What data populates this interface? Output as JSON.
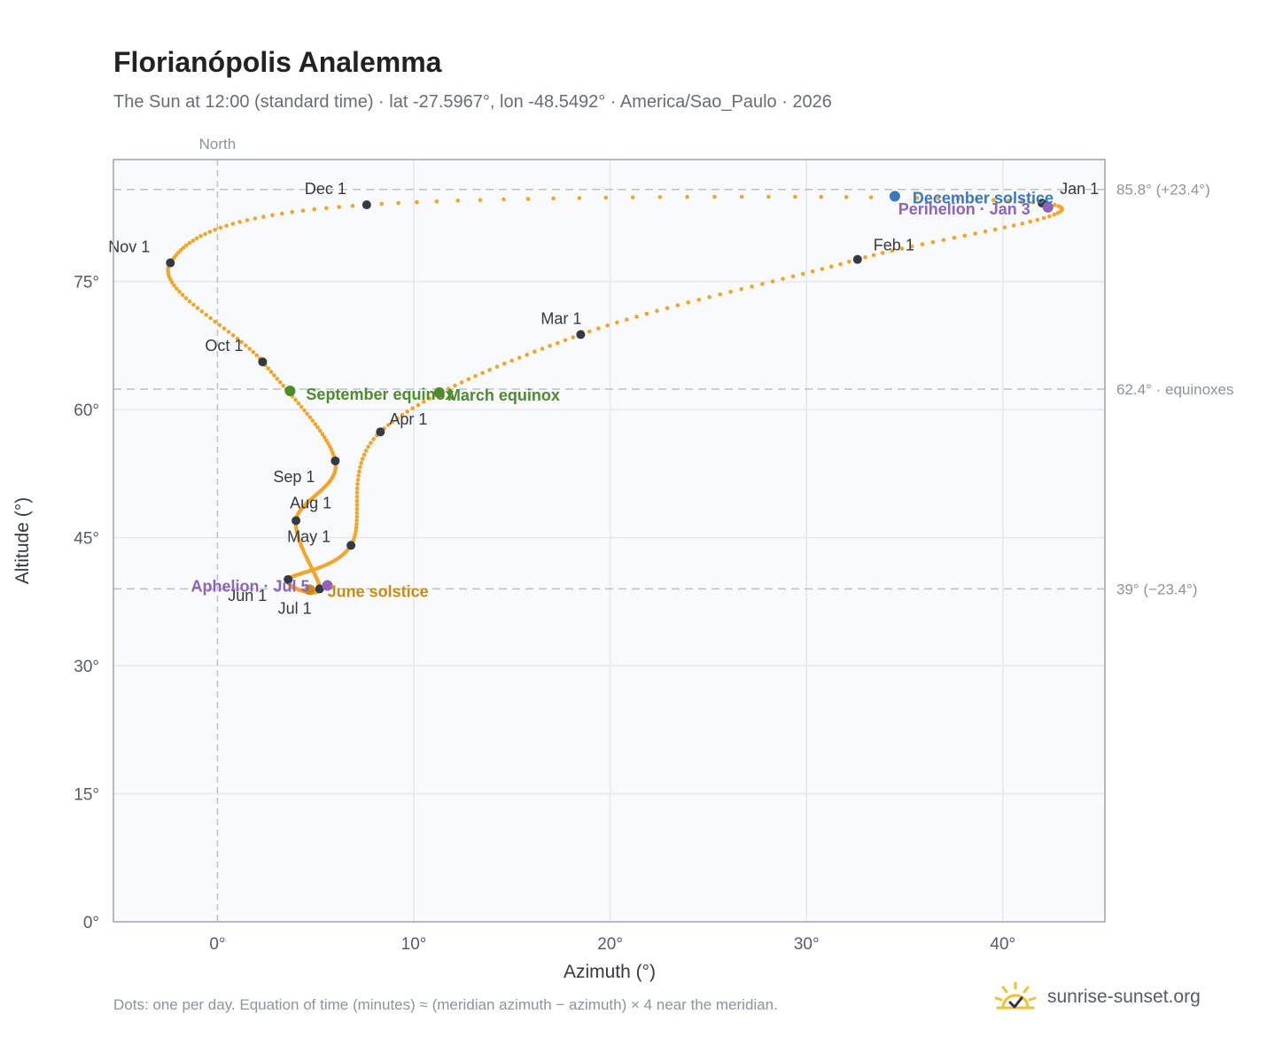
{
  "header": {
    "title": "Florianópolis Analemma",
    "subtitle": "The Sun at 12:00 (standard time) · lat -27.5967°, lon -48.5492° · America/Sao_Paulo · 2026"
  },
  "footer": {
    "note": "Dots: one per day. Equation of time (minutes) ≈ (meridian azimuth − azimuth) × 4 near the meridian.",
    "brand": "sunrise-sunset.org",
    "brand_icon": "sun-logo-icon"
  },
  "colors": {
    "curve": "#f2a52a",
    "month_dot": "#333a44",
    "equinox": "#4e8a2e",
    "december_solstice": "#3a78c0",
    "june_solstice": "#c98c14",
    "apsis": "#8f63b8",
    "plot_bg": "#f8fafc",
    "grid": "#e3e8ee",
    "reference_line": "#b8c1cc"
  },
  "chart_data": {
    "type": "scatter",
    "title": "Florianópolis Analemma",
    "xlabel": "Azimuth (°)",
    "ylabel": "Altitude (°)",
    "xlim": [
      -5.3,
      45.2
    ],
    "ylim": [
      0,
      89.3
    ],
    "x_ticks": [
      {
        "value": 0,
        "label": "0°"
      },
      {
        "value": 10,
        "label": "10°"
      },
      {
        "value": 20,
        "label": "20°"
      },
      {
        "value": 30,
        "label": "30°"
      },
      {
        "value": 40,
        "label": "40°"
      }
    ],
    "y_ticks": [
      {
        "value": 0,
        "label": "0°"
      },
      {
        "value": 15,
        "label": "15°"
      },
      {
        "value": 30,
        "label": "30°"
      },
      {
        "value": 45,
        "label": "45°"
      },
      {
        "value": 60,
        "label": "60°"
      },
      {
        "value": 75,
        "label": "75°"
      }
    ],
    "grid": true,
    "meridian": {
      "azimuth": 0,
      "label": "North"
    },
    "reference_lines": [
      {
        "altitude": 85.8,
        "label": "85.8° (+23.4°)"
      },
      {
        "altitude": 62.4,
        "label": "62.4° · equinoxes"
      },
      {
        "altitude": 39.0,
        "label": "39° (−23.4°)"
      }
    ],
    "month_points": [
      {
        "label": "Jan 1",
        "azimuth": 42.0,
        "altitude": 84.2
      },
      {
        "label": "Feb 1",
        "azimuth": 32.6,
        "altitude": 77.6
      },
      {
        "label": "Mar 1",
        "azimuth": 18.5,
        "altitude": 68.8
      },
      {
        "label": "Apr 1",
        "azimuth": 8.3,
        "altitude": 57.4
      },
      {
        "label": "May 1",
        "azimuth": 6.8,
        "altitude": 44.1
      },
      {
        "label": "Jun 1",
        "azimuth": 3.6,
        "altitude": 40.1
      },
      {
        "label": "Jul 1",
        "azimuth": 5.2,
        "altitude": 39.0
      },
      {
        "label": "Aug 1",
        "azimuth": 4.0,
        "altitude": 47.0
      },
      {
        "label": "Sep 1",
        "azimuth": 6.0,
        "altitude": 54.0
      },
      {
        "label": "Oct 1",
        "azimuth": 2.3,
        "altitude": 65.6
      },
      {
        "label": "Nov 1",
        "azimuth": -2.4,
        "altitude": 77.2
      },
      {
        "label": "Dec 1",
        "azimuth": 7.6,
        "altitude": 84.0
      }
    ],
    "events": [
      {
        "label": "March equinox",
        "azimuth": 11.3,
        "altitude": 62.0,
        "kind": "equinox"
      },
      {
        "label": "September equinox",
        "azimuth": 3.7,
        "altitude": 62.2,
        "kind": "equinox"
      },
      {
        "label": "June solstice",
        "azimuth": 4.7,
        "altitude": 38.9,
        "kind": "june_solstice"
      },
      {
        "label": "December solstice",
        "azimuth": 34.5,
        "altitude": 85.0,
        "kind": "december_solstice"
      },
      {
        "label": "Perihelion · Jan 3",
        "azimuth": 42.3,
        "altitude": 83.7,
        "kind": "apsis"
      },
      {
        "label": "Aphelion · Jul 5",
        "azimuth": 5.6,
        "altitude": 39.4,
        "kind": "apsis"
      }
    ]
  }
}
